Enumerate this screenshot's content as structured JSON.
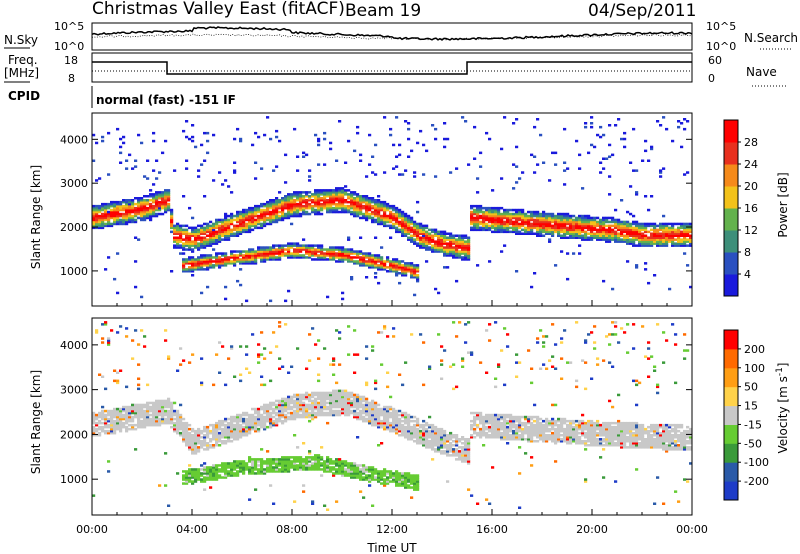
{
  "header": {
    "station": "Christmas Valley East (fitACF)",
    "beam": "Beam 19",
    "date": "04/Sep/2011"
  },
  "aux_panels": {
    "nsky_label": "N.Sky",
    "nsky_ticks": [
      "10^5",
      "10^0"
    ],
    "nsearch_label": "N.Search",
    "nsearch_ticks": [
      "10^5",
      "10^0"
    ],
    "freq_label_1": "Freq.",
    "freq_label_2": "[MHz]",
    "freq_ticks": [
      "18",
      "8"
    ],
    "nave_label": "Nave",
    "nave_ticks": [
      "60",
      "0"
    ],
    "cpid_label": "CPID",
    "cpid_text": "normal (fast) -151 IF"
  },
  "colors": {
    "power": [
      "#1a1adc",
      "#2a50c0",
      "#3d8f7a",
      "#63b24d",
      "#f3c21a",
      "#f58a1a",
      "#e8301e",
      "#ff0000"
    ],
    "velocity": [
      "#ff0000",
      "#ff6a00",
      "#ff9e14",
      "#ffd24a",
      "#c8c8c8",
      "#66cc33",
      "#3a9a3a",
      "#2a5aa8",
      "#1e3cc8"
    ],
    "gray_scatter": "#c8c8c8"
  },
  "chart_data": [
    {
      "type": "heatmap",
      "panel": "power",
      "xlabel": "Time UT",
      "ylabel": "Slant Range [km]",
      "xlim": [
        "00:00",
        "24:00"
      ],
      "ylim": [
        200,
        4600
      ],
      "x_ticks": [
        "00:00",
        "04:00",
        "08:00",
        "12:00",
        "16:00",
        "20:00",
        "00:00"
      ],
      "y_ticks": [
        1000,
        2000,
        3000,
        4000
      ],
      "colorbar": {
        "label": "Power [dB]",
        "ticks": [
          4,
          8,
          12,
          16,
          20,
          24,
          28
        ],
        "range": [
          0,
          32
        ]
      },
      "bands": [
        {
          "name": "",
          "points": [
            [
              0,
              2200
            ],
            [
              2,
              2400
            ],
            [
              3,
              2600
            ],
            [
              3.2,
              1800
            ],
            [
              4,
              1700
            ],
            [
              6,
              2100
            ],
            [
              8,
              2500
            ],
            [
              10,
              2600
            ],
            [
              12,
              2200
            ],
            [
              13,
              1800
            ],
            [
              14,
              1600
            ],
            [
              15,
              1500
            ],
            [
              15.1,
              2200
            ],
            [
              17,
              2100
            ],
            [
              19,
              2000
            ],
            [
              21,
              1900
            ],
            [
              22,
              1800
            ],
            [
              24,
              1800
            ]
          ]
        },
        {
          "name": "",
          "points": [
            [
              3.5,
              1100
            ],
            [
              6,
              1300
            ],
            [
              8,
              1450
            ],
            [
              10,
              1350
            ],
            [
              12,
              1100
            ],
            [
              13,
              950
            ]
          ]
        }
      ]
    },
    {
      "type": "heatmap",
      "panel": "velocity",
      "xlabel": "Time UT",
      "ylabel": "Slant Range [km]",
      "xlim": [
        "00:00",
        "24:00"
      ],
      "ylim": [
        200,
        4600
      ],
      "x_ticks": [
        "00:00",
        "04:00",
        "08:00",
        "12:00",
        "16:00",
        "20:00",
        "00:00"
      ],
      "y_ticks": [
        1000,
        2000,
        3000,
        4000
      ],
      "colorbar": {
        "label": "Velocity [m s^-1]",
        "ticks": [
          200,
          100,
          50,
          15,
          -15,
          -50,
          -100,
          -200
        ]
      },
      "bands": [
        {
          "name": "",
          "points": [
            [
              0,
              2200
            ],
            [
              3,
              2500
            ],
            [
              4,
              1800
            ],
            [
              8,
              2600
            ],
            [
              10,
              2700
            ],
            [
              12,
              2300
            ],
            [
              14,
              1800
            ],
            [
              15,
              1600
            ],
            [
              15.1,
              2200
            ],
            [
              20,
              2000
            ],
            [
              24,
              1900
            ]
          ]
        },
        {
          "name": "",
          "points": [
            [
              3.5,
              1000
            ],
            [
              6,
              1250
            ],
            [
              9,
              1350
            ],
            [
              11,
              1100
            ],
            [
              13,
              900
            ]
          ]
        }
      ]
    }
  ]
}
